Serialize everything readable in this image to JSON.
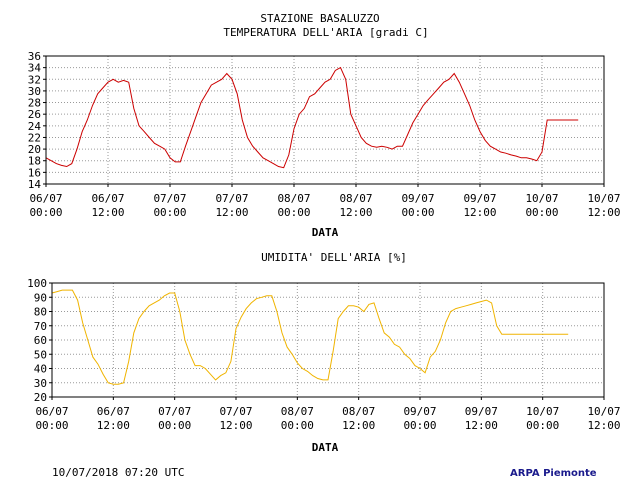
{
  "footer": {
    "timestamp": "10/07/2018 07:20 UTC",
    "brand": "ARPA Piemonte",
    "brand_color": "#1a1a8c"
  },
  "chart_data": [
    {
      "type": "line",
      "title": "STAZIONE BASALUZZO",
      "subtitle": "TEMPERATURA DELL'ARIA [gradi C]",
      "xlabel": "DATA",
      "ylabel": "",
      "x_unit": "hours since 06/07 00:00",
      "xlim": [
        0,
        108
      ],
      "ylim": [
        14,
        36
      ],
      "yticks": [
        14,
        16,
        18,
        20,
        22,
        24,
        26,
        28,
        30,
        32,
        34,
        36
      ],
      "xtick_labels": [
        [
          "06/07",
          "00:00"
        ],
        [
          "06/07",
          "12:00"
        ],
        [
          "07/07",
          "00:00"
        ],
        [
          "07/07",
          "12:00"
        ],
        [
          "08/07",
          "00:00"
        ],
        [
          "08/07",
          "12:00"
        ],
        [
          "09/07",
          "00:00"
        ],
        [
          "09/07",
          "12:00"
        ],
        [
          "10/07",
          "00:00"
        ],
        [
          "10/07",
          "12:00"
        ]
      ],
      "grid": true,
      "series": [
        {
          "color": "#cc0000",
          "x": [
            0,
            1,
            2,
            3,
            4,
            5,
            6,
            7,
            8,
            9,
            10,
            11,
            12,
            13,
            14,
            15,
            16,
            17,
            18,
            19,
            20,
            21,
            22,
            23,
            24,
            25,
            26,
            27,
            28,
            29,
            30,
            31,
            32,
            33,
            34,
            35,
            36,
            37,
            38,
            39,
            40,
            41,
            42,
            43,
            44,
            45,
            46,
            47,
            48,
            49,
            50,
            51,
            52,
            53,
            54,
            55,
            56,
            57,
            58,
            59,
            60,
            61,
            62,
            63,
            64,
            65,
            66,
            67,
            68,
            69,
            70,
            71,
            72,
            73,
            74,
            75,
            76,
            77,
            78,
            79,
            80,
            81,
            82,
            83,
            84,
            85,
            86,
            87,
            88,
            89,
            90,
            91,
            92,
            93,
            94,
            95,
            96,
            97,
            98,
            99,
            100,
            101,
            102,
            103
          ],
          "y": [
            18.5,
            18.0,
            17.5,
            17.2,
            17.0,
            17.5,
            20.0,
            23.0,
            25.0,
            27.5,
            29.5,
            30.5,
            31.5,
            32.0,
            31.5,
            31.8,
            31.5,
            27.0,
            24.0,
            23.0,
            22.0,
            21.0,
            20.5,
            20.0,
            18.5,
            17.8,
            17.8,
            20.5,
            23.0,
            25.5,
            28.0,
            29.5,
            31.0,
            31.5,
            32.0,
            33.0,
            32.0,
            29.5,
            25.0,
            22.0,
            20.5,
            19.5,
            18.5,
            18.0,
            17.5,
            17.0,
            16.8,
            19.0,
            23.5,
            26.0,
            27.0,
            29.0,
            29.5,
            30.5,
            31.5,
            32.0,
            33.5,
            34.0,
            32.0,
            26.0,
            24.0,
            22.0,
            21.0,
            20.5,
            20.3,
            20.5,
            20.3,
            20.0,
            20.5,
            20.5,
            22.5,
            24.5,
            26.0,
            27.5,
            28.5,
            29.5,
            30.5,
            31.5,
            32.0,
            33.0,
            31.5,
            29.5,
            27.5,
            25.0,
            23.0,
            21.5,
            20.5,
            20.0,
            19.5,
            19.3,
            19.0,
            18.8,
            18.5,
            18.5,
            18.3,
            18.0,
            19.5,
            25.0,
            25.0,
            25.0,
            25.0,
            25.0,
            25.0,
            25.0
          ]
        }
      ]
    },
    {
      "type": "line",
      "title": "UMIDITA' DELL'ARIA [%]",
      "xlabel": "DATA",
      "ylabel": "",
      "x_unit": "hours since 06/07 00:00",
      "xlim": [
        0,
        108
      ],
      "ylim": [
        20,
        100
      ],
      "yticks": [
        20,
        30,
        40,
        50,
        60,
        70,
        80,
        90,
        100
      ],
      "xtick_labels": [
        [
          "06/07",
          "00:00"
        ],
        [
          "06/07",
          "12:00"
        ],
        [
          "07/07",
          "00:00"
        ],
        [
          "07/07",
          "12:00"
        ],
        [
          "08/07",
          "00:00"
        ],
        [
          "08/07",
          "12:00"
        ],
        [
          "09/07",
          "00:00"
        ],
        [
          "09/07",
          "12:00"
        ],
        [
          "10/07",
          "00:00"
        ],
        [
          "10/07",
          "12:00"
        ]
      ],
      "grid": true,
      "series": [
        {
          "color": "#f0b400",
          "x": [
            0,
            1,
            2,
            3,
            4,
            5,
            6,
            7,
            8,
            9,
            10,
            11,
            12,
            13,
            14,
            15,
            16,
            17,
            18,
            19,
            20,
            21,
            22,
            23,
            24,
            25,
            26,
            27,
            28,
            29,
            30,
            31,
            32,
            33,
            34,
            35,
            36,
            37,
            38,
            39,
            40,
            41,
            42,
            43,
            44,
            45,
            46,
            47,
            48,
            49,
            50,
            51,
            52,
            53,
            54,
            55,
            56,
            57,
            58,
            59,
            60,
            61,
            62,
            63,
            64,
            65,
            66,
            67,
            68,
            69,
            70,
            71,
            72,
            73,
            74,
            75,
            76,
            77,
            78,
            79,
            80,
            81,
            82,
            83,
            84,
            85,
            86,
            87,
            88,
            89,
            90,
            91,
            92,
            93,
            94,
            95,
            96,
            97,
            98,
            99,
            100,
            101
          ],
          "y": [
            93,
            94,
            95,
            95,
            95,
            88,
            72,
            60,
            48,
            43,
            36,
            30,
            29,
            29,
            30,
            45,
            65,
            75,
            80,
            84,
            86,
            88,
            91,
            93,
            93,
            80,
            60,
            50,
            42,
            42,
            40,
            36,
            32,
            35,
            37,
            45,
            68,
            76,
            82,
            86,
            89,
            90,
            91,
            91,
            80,
            65,
            55,
            50,
            44,
            40,
            38,
            35,
            33,
            32,
            32,
            52,
            75,
            80,
            84,
            84,
            83,
            80,
            85,
            86,
            75,
            65,
            62,
            57,
            55,
            50,
            47,
            42,
            40,
            37,
            48,
            52,
            60,
            72,
            80,
            82,
            83,
            84,
            85,
            86,
            87,
            88,
            86,
            70,
            64,
            64,
            64,
            64,
            64,
            64,
            64,
            64,
            64,
            64,
            64,
            64,
            64,
            64
          ]
        }
      ]
    }
  ]
}
